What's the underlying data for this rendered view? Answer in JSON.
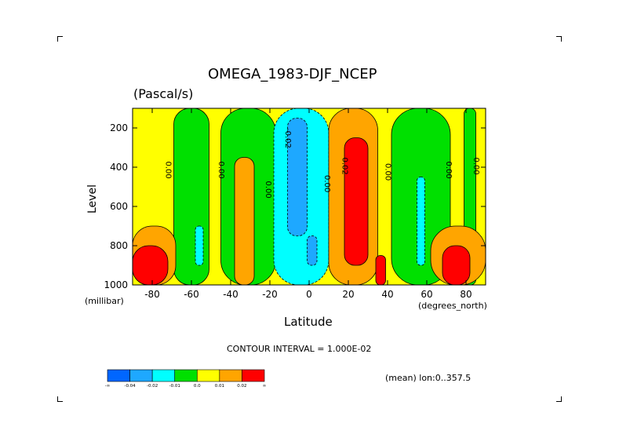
{
  "chart_data": {
    "type": "heatmap",
    "title": "OMEGA_1983-DJF_NCEP",
    "subtitle": "(Pascal/s)",
    "xlabel": "Latitude",
    "ylabel": "Level",
    "x_units": "(degrees_north)",
    "y_units": "(millibar)",
    "xlim": [
      -90,
      90
    ],
    "ylim": [
      1000,
      100
    ],
    "y_reversed": true,
    "x_ticks": [
      {
        "v": -80,
        "label": "-80"
      },
      {
        "v": -60,
        "label": "-60"
      },
      {
        "v": -40,
        "label": "-40"
      },
      {
        "v": -20,
        "label": "-20"
      },
      {
        "v": 0,
        "label": "0"
      },
      {
        "v": 20,
        "label": "20"
      },
      {
        "v": 40,
        "label": "40"
      },
      {
        "v": 60,
        "label": "60"
      },
      {
        "v": 80,
        "label": "80"
      }
    ],
    "y_ticks": [
      {
        "v": 200,
        "label": "200"
      },
      {
        "v": 400,
        "label": "400"
      },
      {
        "v": 600,
        "label": "600"
      },
      {
        "v": 800,
        "label": "800"
      },
      {
        "v": 1000,
        "label": "1000"
      }
    ],
    "contour_interval_text": "CONTOUR INTERVAL = 1.000E-02",
    "mean_text": "(mean) lon:0..357.5",
    "colorscale": [
      {
        "color": "#0066ff"
      },
      {
        "color": "#1ea8ff"
      },
      {
        "color": "#00ffff"
      },
      {
        "color": "#00e000"
      },
      {
        "color": "#ffff00"
      },
      {
        "color": "#ffa500"
      },
      {
        "color": "#ff0000"
      }
    ],
    "colorbar_labels": [
      "-∞",
      "-0.04",
      "-0.02",
      "-0.01",
      "0.0",
      "0.01",
      "0.02",
      "∞"
    ],
    "contour_labels": [
      {
        "lat": -73,
        "lev": 370,
        "text": "0.00"
      },
      {
        "lat": -46,
        "lev": 370,
        "text": "0.00"
      },
      {
        "lat": -22,
        "lev": 470,
        "text": "0.00"
      },
      {
        "lat": -12,
        "lev": 200,
        "text": "-0.02"
      },
      {
        "lat": 8,
        "lev": 440,
        "text": "0.00"
      },
      {
        "lat": 17,
        "lev": 350,
        "text": "0.02"
      },
      {
        "lat": 39,
        "lev": 380,
        "text": "0.00"
      },
      {
        "lat": 70,
        "lev": 370,
        "text": "0.00"
      },
      {
        "lat": 84,
        "lev": 350,
        "text": "0.00"
      }
    ],
    "fields": [
      {
        "level": 1,
        "lat": -90,
        "lev": 100,
        "w_lat": 180,
        "w_lev": 900
      },
      {
        "level": 0,
        "lat": -69,
        "lev": 100,
        "w_lat": 18,
        "w_lev": 900
      },
      {
        "level": 0,
        "lat": -45,
        "lev": 100,
        "w_lat": 28,
        "w_lev": 900
      },
      {
        "level": 0,
        "lat": 42,
        "lev": 100,
        "w_lat": 30,
        "w_lev": 900
      },
      {
        "level": 0,
        "lat": 79,
        "lev": 100,
        "w_lat": 6,
        "w_lev": 900
      },
      {
        "level": -1,
        "lat": -18,
        "lev": 100,
        "w_lat": 28,
        "w_lev": 900
      },
      {
        "level": -2,
        "lat": -11,
        "lev": 150,
        "w_lat": 10,
        "w_lev": 600
      },
      {
        "level": -2,
        "lat": -1,
        "lev": 750,
        "w_lat": 5,
        "w_lev": 150
      },
      {
        "level": -1,
        "lat": -58,
        "lev": 700,
        "w_lat": 4,
        "w_lev": 200
      },
      {
        "level": -1,
        "lat": 55,
        "lev": 450,
        "w_lat": 4,
        "w_lev": 450
      },
      {
        "level": 2,
        "lat": -38,
        "lev": 350,
        "w_lat": 10,
        "w_lev": 650
      },
      {
        "level": 2,
        "lat": 10,
        "lev": 100,
        "w_lat": 25,
        "w_lev": 900
      },
      {
        "level": 3,
        "lat": 18,
        "lev": 250,
        "w_lat": 12,
        "w_lev": 650
      },
      {
        "level": 3,
        "lat": 34,
        "lev": 850,
        "w_lat": 5,
        "w_lev": 150
      },
      {
        "level": 2,
        "lat": 62,
        "lev": 700,
        "w_lat": 28,
        "w_lev": 300
      },
      {
        "level": 3,
        "lat": 68,
        "lev": 800,
        "w_lat": 14,
        "w_lev": 200
      },
      {
        "level": 2,
        "lat": -90,
        "lev": 700,
        "w_lat": 22,
        "w_lev": 300
      },
      {
        "level": 3,
        "lat": -90,
        "lev": 800,
        "w_lat": 18,
        "w_lev": 200
      }
    ]
  }
}
